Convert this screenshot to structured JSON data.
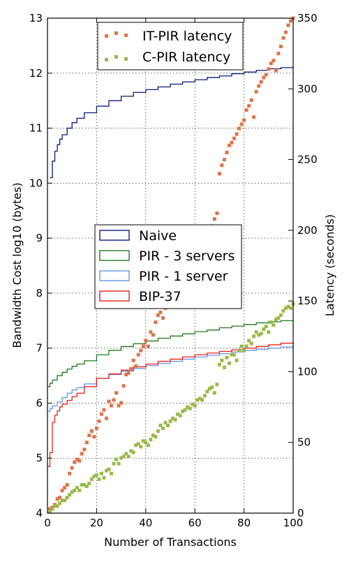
{
  "chart_data": {
    "type": "line",
    "xlabel": "Number of Transactions",
    "ylabel": "Bandwidth Cost log10 (bytes)",
    "y2label": "Latency (seconds)",
    "xlim": [
      0,
      100
    ],
    "ylim": [
      4,
      13
    ],
    "y2lim": [
      0,
      350
    ],
    "x_ticks": [
      "0",
      "20",
      "40",
      "60",
      "80",
      "100"
    ],
    "y_ticks": [
      "4",
      "5",
      "6",
      "7",
      "8",
      "9",
      "10",
      "11",
      "12",
      "13"
    ],
    "y2_ticks": [
      "0",
      "50",
      "100",
      "150",
      "200",
      "250",
      "300",
      "350"
    ],
    "grid": true,
    "legend_lines_position": "center-left",
    "legend_scatter_position": "top-center",
    "series": [
      {
        "name": "Naive",
        "color": "#0a1a7a",
        "style": "step",
        "axis": "left",
        "x": [
          1,
          2,
          3,
          4,
          5,
          6,
          8,
          10,
          12,
          15,
          20,
          25,
          30,
          35,
          40,
          45,
          50,
          55,
          60,
          65,
          70,
          75,
          80,
          85,
          90,
          95,
          100
        ],
        "y": [
          10.1,
          10.4,
          10.58,
          10.7,
          10.8,
          10.88,
          11.0,
          11.1,
          11.18,
          11.28,
          11.4,
          11.5,
          11.58,
          11.65,
          11.7,
          11.75,
          11.8,
          11.84,
          11.88,
          11.92,
          11.95,
          11.99,
          12.02,
          12.05,
          12.08,
          12.1,
          12.13
        ]
      },
      {
        "name": "PIR - 3 servers",
        "color": "#1f7a1f",
        "style": "step",
        "axis": "left",
        "x": [
          0,
          1,
          2,
          4,
          6,
          8,
          10,
          12,
          15,
          20,
          25,
          30,
          35,
          40,
          45,
          50,
          55,
          60,
          65,
          70,
          75,
          80,
          85,
          90,
          95,
          100
        ],
        "y": [
          6.3,
          6.36,
          6.42,
          6.5,
          6.56,
          6.62,
          6.67,
          6.71,
          6.77,
          6.88,
          6.96,
          7.03,
          7.08,
          7.13,
          7.18,
          7.22,
          7.26,
          7.3,
          7.33,
          7.37,
          7.4,
          7.43,
          7.46,
          7.48,
          7.5,
          7.52
        ]
      },
      {
        "name": "PIR - 1 server",
        "color": "#6495ed",
        "style": "step",
        "axis": "left",
        "x": [
          0,
          1,
          2,
          4,
          6,
          8,
          10,
          12,
          15,
          20,
          25,
          30,
          35,
          40,
          45,
          50,
          55,
          60,
          65,
          70,
          75,
          80,
          85,
          90,
          95,
          100
        ],
        "y": [
          5.85,
          5.9,
          5.95,
          6.02,
          6.1,
          6.18,
          6.24,
          6.28,
          6.35,
          6.45,
          6.52,
          6.58,
          6.63,
          6.68,
          6.72,
          6.76,
          6.8,
          6.84,
          6.87,
          6.9,
          6.93,
          6.96,
          6.98,
          7.0,
          7.02,
          7.05
        ]
      },
      {
        "name": "BIP-37",
        "color": "#e8201a",
        "style": "step",
        "axis": "left",
        "x": [
          0,
          1,
          2,
          3,
          4,
          5,
          6,
          8,
          10,
          12,
          15,
          20,
          25,
          30,
          35,
          40,
          45,
          50,
          55,
          60,
          65,
          70,
          75,
          80,
          85,
          90,
          95,
          100
        ],
        "y": [
          4.85,
          5.1,
          5.65,
          5.78,
          5.86,
          5.93,
          5.98,
          6.05,
          6.12,
          6.18,
          6.3,
          6.45,
          6.53,
          6.6,
          6.66,
          6.71,
          6.76,
          6.8,
          6.84,
          6.88,
          6.91,
          6.94,
          6.97,
          7.0,
          7.03,
          7.06,
          7.09,
          7.12
        ]
      },
      {
        "name": "IT-PIR latency",
        "color": "#e2724a",
        "style": "scatter",
        "axis": "right",
        "x": [
          1,
          2,
          3,
          4,
          5,
          6,
          7,
          8,
          9,
          10,
          11,
          12,
          13,
          14,
          15,
          16,
          17,
          18,
          19,
          20,
          21,
          22,
          23,
          24,
          25,
          26,
          27,
          28,
          29,
          30,
          31,
          32,
          33,
          34,
          35,
          36,
          37,
          38,
          39,
          40,
          41,
          42,
          43,
          44,
          45,
          46,
          47,
          48,
          49,
          50,
          51,
          52,
          53,
          54,
          55,
          56,
          57,
          58,
          59,
          60,
          61,
          62,
          63,
          64,
          65,
          66,
          67,
          68,
          69,
          70,
          71,
          72,
          73,
          74,
          75,
          76,
          77,
          78,
          79,
          80,
          81,
          82,
          83,
          84,
          85,
          86,
          87,
          88,
          89,
          90,
          91,
          92,
          93,
          94,
          95,
          96,
          97,
          98,
          99,
          100
        ],
        "y": [
          3,
          4,
          6,
          10,
          11,
          16,
          18,
          20,
          28,
          32,
          36,
          38,
          37,
          42,
          45,
          50,
          55,
          58,
          54,
          60,
          65,
          70,
          73,
          67,
          79,
          76,
          80,
          85,
          76,
          78,
          90,
          98,
          99,
          102,
          108,
          104,
          112,
          115,
          118,
          122,
          118,
          128,
          126,
          135,
          140,
          142,
          138,
          145,
          148,
          153,
          155,
          160,
          158,
          164,
          167,
          170,
          173,
          175,
          178,
          181,
          184,
          186,
          188,
          193,
          195,
          200,
          203,
          208,
          212,
          240,
          246,
          250,
          255,
          260,
          262,
          265,
          268,
          272,
          275,
          278,
          285,
          288,
          292,
          280,
          298,
          302,
          305,
          308,
          310,
          314,
          318,
          320,
          313,
          325,
          330,
          336,
          340,
          345,
          348,
          350
        ]
      },
      {
        "name": "C-PIR latency",
        "color": "#9aba4a",
        "style": "scatter",
        "axis": "right",
        "x": [
          1,
          2,
          3,
          4,
          5,
          6,
          7,
          8,
          9,
          10,
          11,
          12,
          13,
          14,
          15,
          16,
          17,
          18,
          19,
          20,
          21,
          22,
          23,
          24,
          25,
          26,
          27,
          28,
          29,
          30,
          31,
          32,
          33,
          34,
          35,
          36,
          37,
          38,
          39,
          40,
          41,
          42,
          43,
          44,
          45,
          46,
          47,
          48,
          49,
          50,
          51,
          52,
          53,
          54,
          55,
          56,
          57,
          58,
          59,
          60,
          61,
          62,
          63,
          64,
          65,
          66,
          67,
          68,
          69,
          70,
          71,
          72,
          73,
          74,
          75,
          76,
          77,
          78,
          79,
          80,
          81,
          82,
          83,
          84,
          85,
          86,
          87,
          88,
          89,
          90,
          91,
          92,
          93,
          94,
          95,
          96,
          97,
          98,
          99,
          100
        ],
        "y": [
          1,
          3,
          5,
          5,
          7,
          9,
          9,
          11,
          13,
          15,
          16,
          18,
          16,
          20,
          20,
          19,
          21,
          24,
          26,
          27,
          24,
          28,
          25,
          30,
          31,
          28,
          35,
          38,
          35,
          39,
          40,
          42,
          40,
          44,
          43,
          48,
          49,
          47,
          51,
          50,
          48,
          52,
          55,
          54,
          58,
          62,
          60,
          64,
          62,
          65,
          67,
          66,
          70,
          69,
          72,
          73,
          75,
          74,
          77,
          76,
          80,
          81,
          80,
          83,
          86,
          88,
          89,
          85,
          91,
          105,
          108,
          103,
          110,
          106,
          112,
          112,
          108,
          115,
          118,
          115,
          118,
          122,
          120,
          125,
          128,
          126,
          127,
          130,
          132,
          128,
          135,
          133,
          137,
          138,
          140,
          143,
          145,
          146,
          145,
          148
        ]
      }
    ]
  }
}
